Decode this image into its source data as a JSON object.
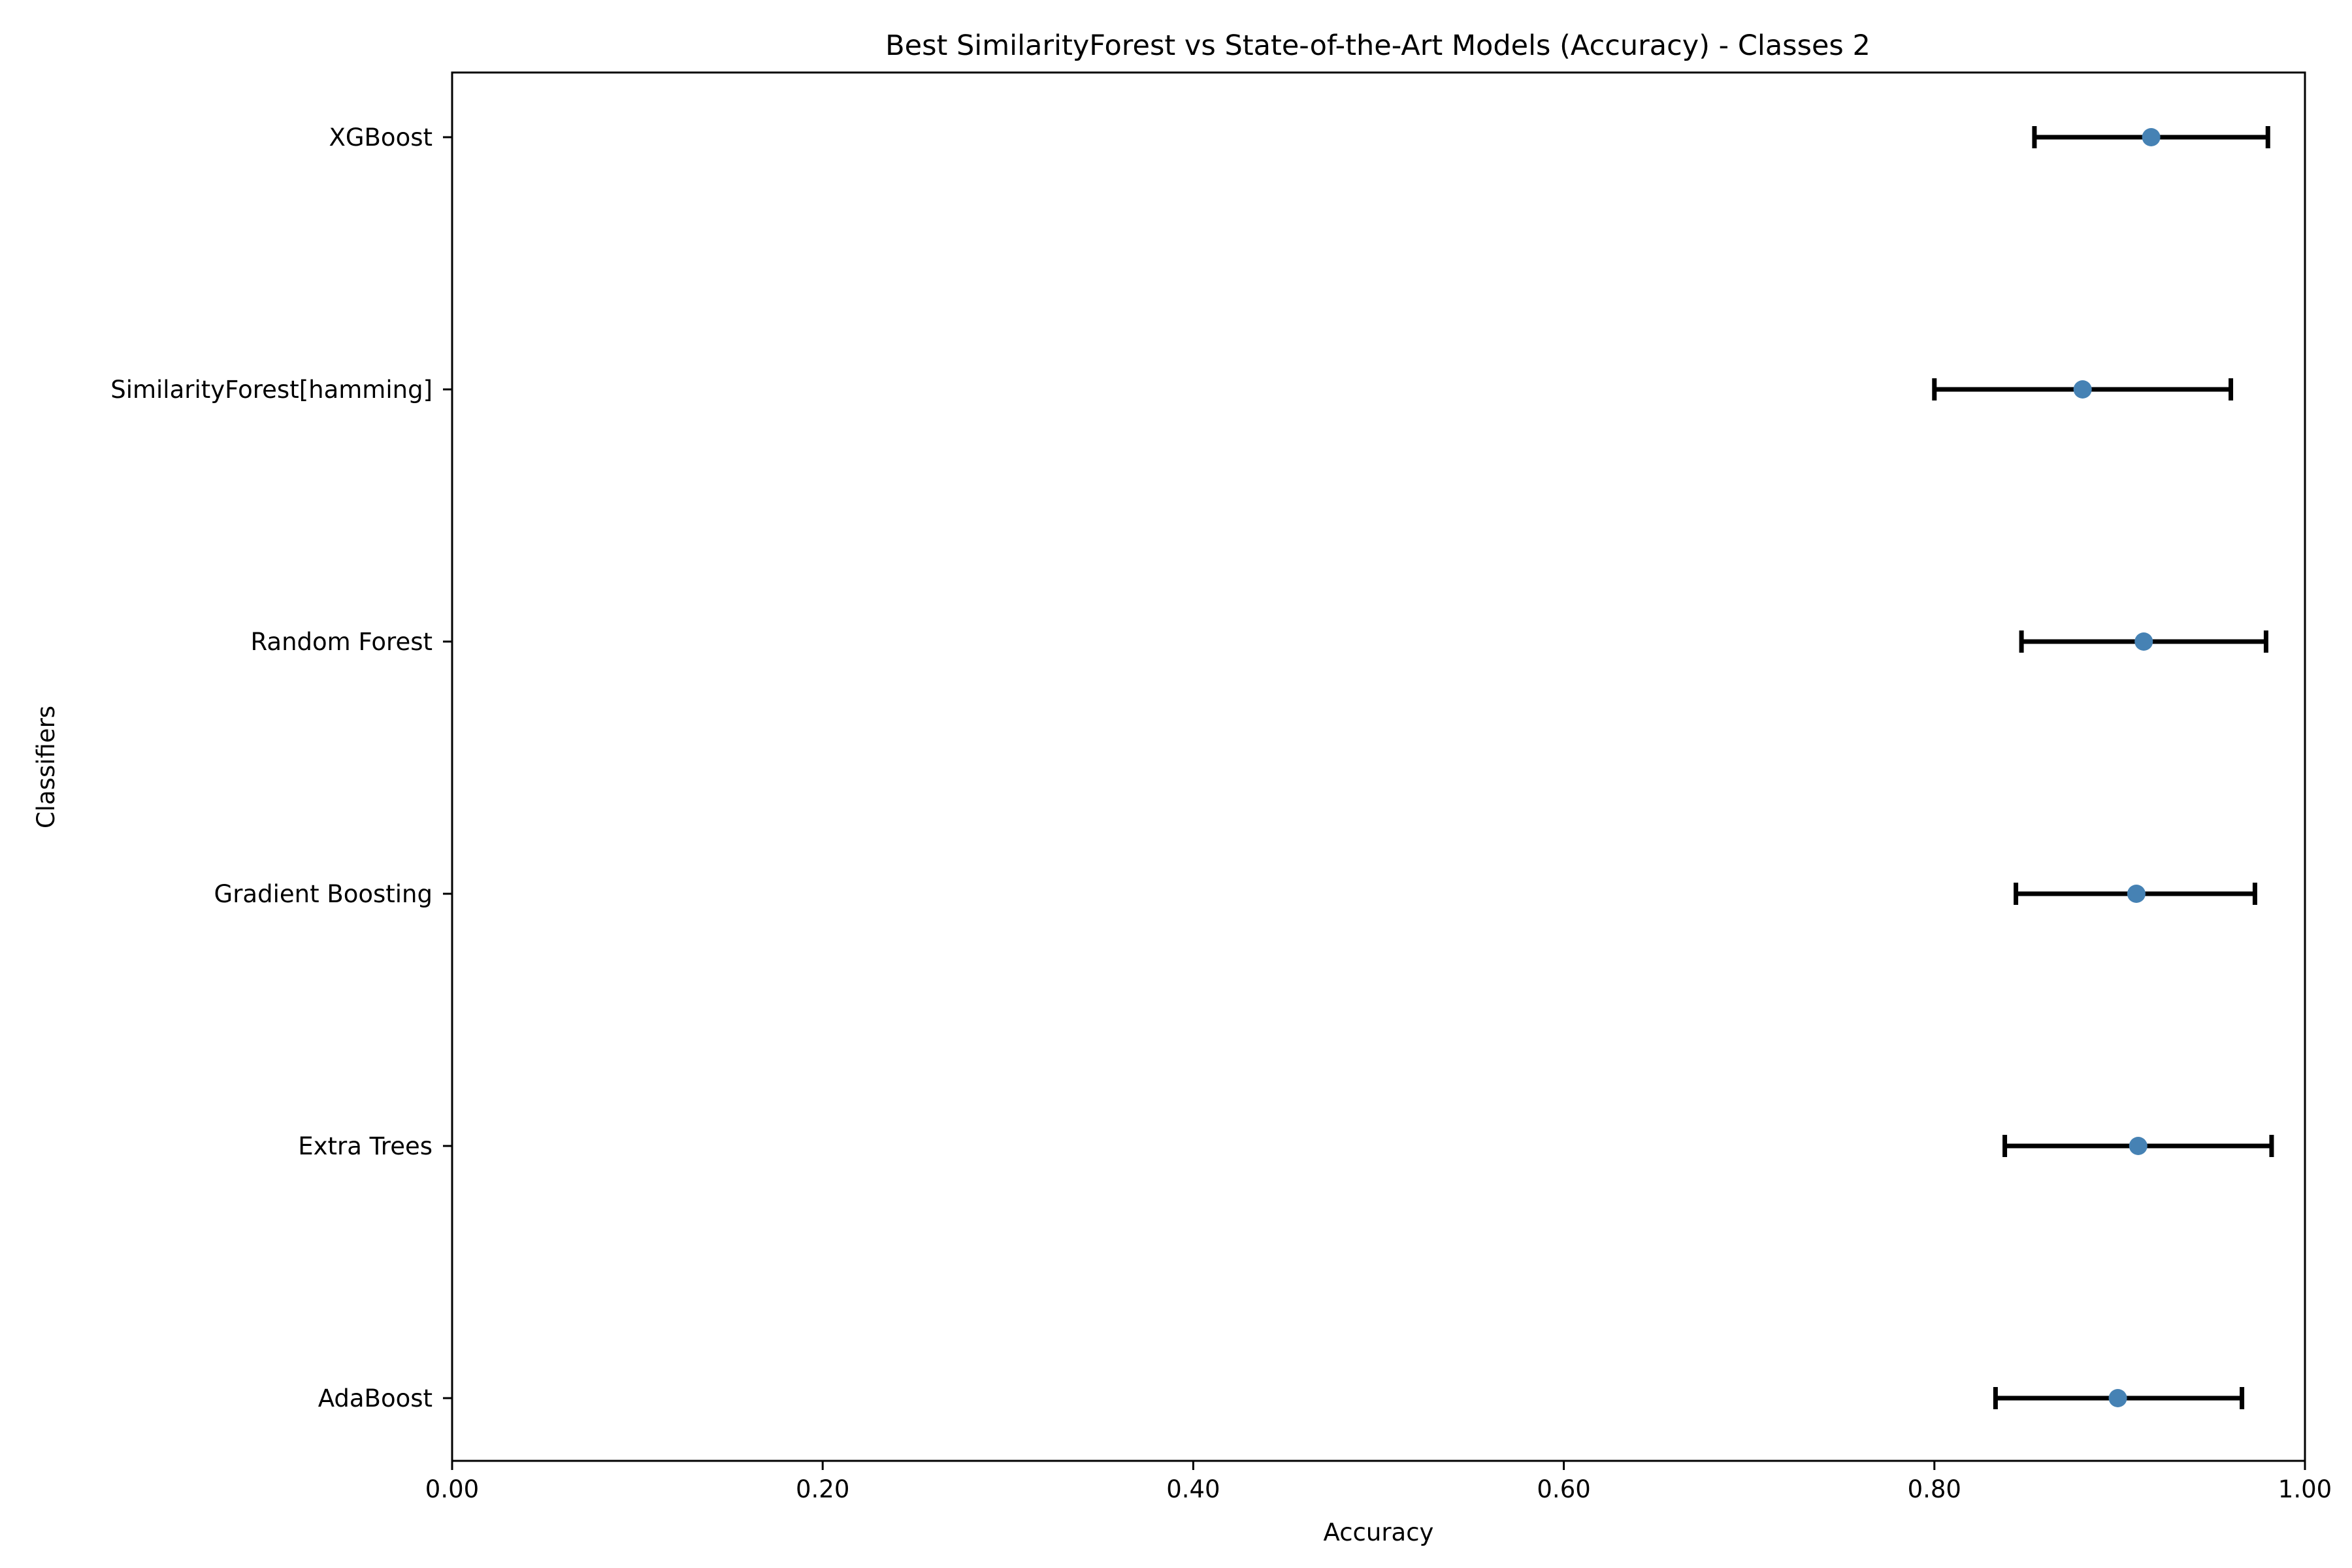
{
  "chart_data": {
    "type": "scatter",
    "subtype": "horizontal-errorbar",
    "title": "Best SimilarityForest vs State-of-the-Art Models (Accuracy) - Classes 2",
    "xlabel": "Accuracy",
    "ylabel": "Classifiers",
    "xlim": [
      0.0,
      1.0
    ],
    "xticks": [
      "0.00",
      "0.20",
      "0.40",
      "0.60",
      "0.80",
      "1.00"
    ],
    "grid": false,
    "legend": "none",
    "categories": [
      "AdaBoost",
      "Extra Trees",
      "Gradient Boosting",
      "Random Forest",
      "SimilarityForest[hamming]",
      "XGBoost"
    ],
    "values": [
      0.899,
      0.91,
      0.909,
      0.913,
      0.88,
      0.917
    ],
    "error_low": [
      0.833,
      0.838,
      0.844,
      0.847,
      0.8,
      0.854
    ],
    "error_high": [
      0.966,
      0.982,
      0.973,
      0.979,
      0.96,
      0.98
    ],
    "marker_color": "#4682b4",
    "errorbar_color": "#000000"
  }
}
